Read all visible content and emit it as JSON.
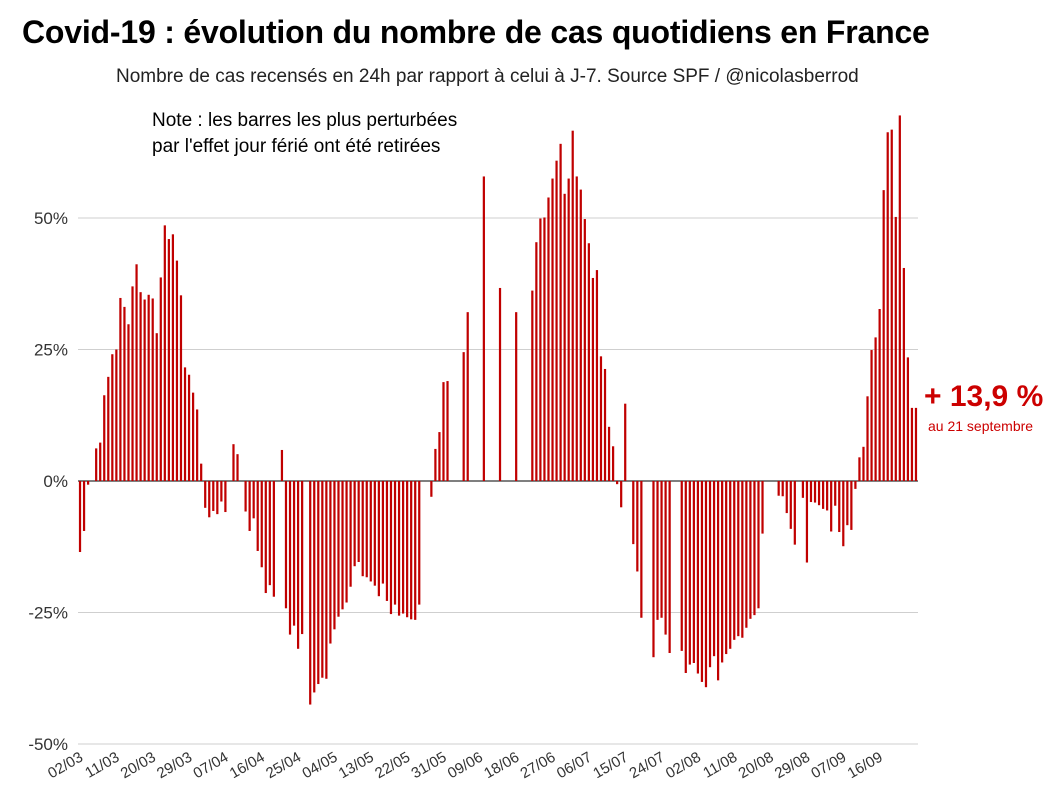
{
  "title": "Covid-19 : évolution du nombre de cas quotidiens en France",
  "subtitle": "Nombre de cas recensés en 24h par rapport à celui à J-7. Source SPF / @nicolasberrod",
  "note": [
    "Note : les barres les plus perturbées",
    "par l'effet jour férié ont été retirées"
  ],
  "callout": {
    "value": "+ 13,9 %",
    "date": "au 21 septembre",
    "color": "#cc0000"
  },
  "colors": {
    "bar": "#c00000",
    "grid": "#cfcfcf",
    "axis": "#333333"
  },
  "chart_data": {
    "type": "bar",
    "x_start": "2021-03-02",
    "x_end": "2021-09-21",
    "ylim": [
      -50,
      68
    ],
    "y_ticks": [
      50,
      25,
      0,
      -25,
      -50
    ],
    "y_tick_labels": [
      "50%",
      "25%",
      "0%",
      "-25%",
      "-50%"
    ],
    "x_tick_labels": [
      "02/03",
      "11/03",
      "20/03",
      "29/03",
      "07/04",
      "16/04",
      "25/04",
      "04/05",
      "13/05",
      "22/05",
      "31/05",
      "09/06",
      "18/06",
      "27/06",
      "06/07",
      "15/07",
      "24/07",
      "02/08",
      "11/08",
      "20/08",
      "29/08",
      "07/09",
      "16/09"
    ],
    "grid": true,
    "values": [
      -13.5,
      -9.5,
      -0.7,
      null,
      6.2,
      7.3,
      16.3,
      19.8,
      24.1,
      25.0,
      34.8,
      33.1,
      29.8,
      37.0,
      41.2,
      35.9,
      34.5,
      35.4,
      34.7,
      28.1,
      38.7,
      48.6,
      46.0,
      46.9,
      41.9,
      35.3,
      21.6,
      20.2,
      16.8,
      13.6,
      3.3,
      -5.1,
      -6.9,
      -5.7,
      -6.3,
      -3.9,
      -5.9,
      null,
      7.0,
      5.1,
      null,
      -5.8,
      -9.5,
      -7.1,
      -13.3,
      -16.4,
      -21.3,
      -19.8,
      -22.0,
      null,
      5.9,
      -24.2,
      -29.2,
      -27.5,
      -31.9,
      -29.1,
      null,
      -42.5,
      -40.2,
      -38.6,
      -37.4,
      -37.6,
      -30.9,
      -28.2,
      -25.8,
      -24.4,
      -23.1,
      -20.1,
      -16.2,
      -15.4,
      -18.1,
      -18.3,
      -19.1,
      -19.9,
      -21.9,
      -19.5,
      -22.8,
      -25.3,
      -23.5,
      -25.6,
      -25.2,
      -25.9,
      -26.3,
      -26.4,
      -23.5,
      null,
      null,
      -3.0,
      6.1,
      9.3,
      18.8,
      19.0,
      null,
      null,
      null,
      24.5,
      32.1,
      null,
      null,
      null,
      57.9,
      null,
      null,
      null,
      36.7,
      null,
      null,
      null,
      32.1,
      null,
      null,
      null,
      36.2,
      45.4,
      49.9,
      50.1,
      53.9,
      57.5,
      60.9,
      64.1,
      54.6,
      57.5,
      66.6,
      57.9,
      55.4,
      49.8,
      45.2,
      38.6,
      40.1,
      23.7,
      21.3,
      10.3,
      6.6,
      -0.6,
      -5.0,
      14.7,
      null,
      -12.0,
      -17.2,
      -26.0,
      null,
      null,
      -33.5,
      -26.4,
      -26.0,
      -29.2,
      -32.7,
      null,
      null,
      -32.3,
      -36.5,
      -34.9,
      -34.6,
      -36.6,
      -38.2,
      -39.2,
      -35.4,
      -33.3,
      -37.9,
      -34.5,
      -32.9,
      -31.9,
      -30.2,
      -29.5,
      -29.8,
      -27.9,
      -26.2,
      -25.5,
      -24.2,
      -10.0,
      null,
      null,
      null,
      -2.8,
      -2.9,
      -6.1,
      -9.1,
      -12.1,
      null,
      -3.2,
      -15.5,
      -4.0,
      -4.1,
      -4.6,
      -5.3,
      -5.6,
      -9.6,
      -4.7,
      -9.7,
      -12.4,
      -8.4,
      -9.3,
      -1.5,
      4.5,
      6.5,
      16.1,
      24.9,
      27.3,
      32.7,
      55.3,
      66.3,
      66.8,
      50.2,
      69.5,
      40.5,
      23.5,
      13.9,
      13.9
    ]
  }
}
